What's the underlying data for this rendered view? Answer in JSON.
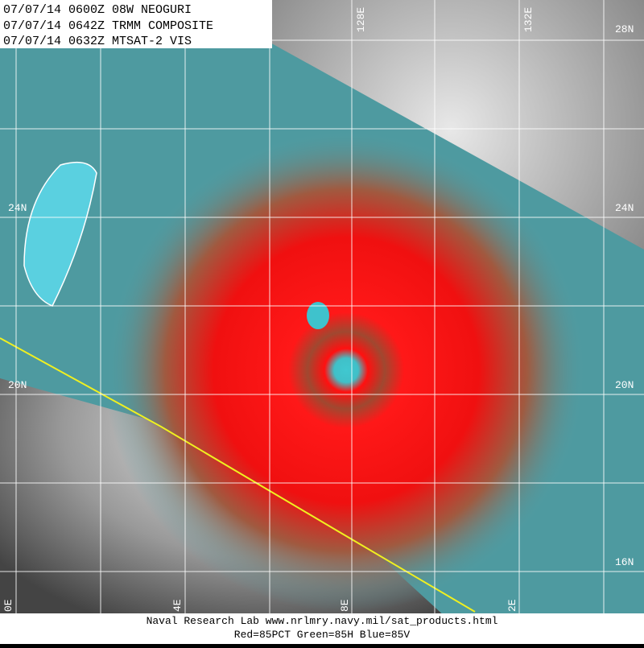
{
  "header": {
    "lines": [
      "07/07/14 0600Z 08W NEOGURI",
      "07/07/14 0642Z TRMM COMPOSITE",
      "07/07/14 0632Z MTSAT-2 VIS"
    ]
  },
  "lat_labels_left": [
    "24N",
    "20N"
  ],
  "lat_labels_right": [
    "28N",
    "24N",
    "20N",
    "16N"
  ],
  "lon_labels_top": [
    "128E",
    "132E"
  ],
  "lon_labels_bottom": [
    "0E",
    "4E",
    "8E",
    "2E"
  ],
  "footer": {
    "lines": [
      "Naval Research Lab  www.nrlmry.navy.mil/sat_products.html",
      "Red=85PCT  Green=85H  Blue=85V"
    ]
  }
}
